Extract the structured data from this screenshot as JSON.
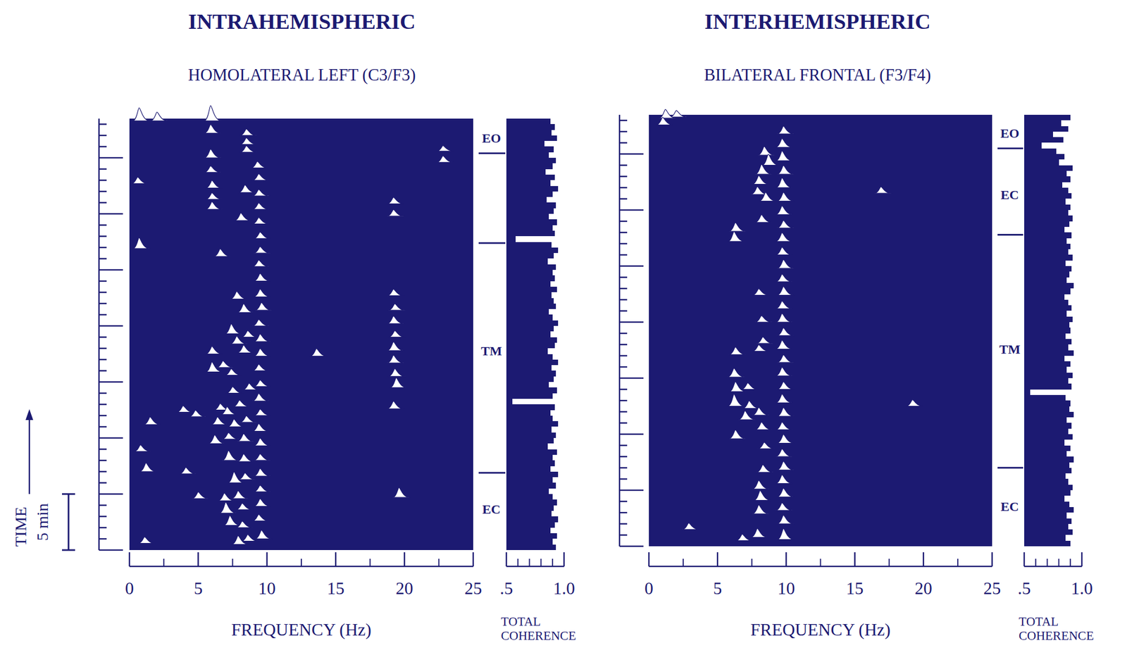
{
  "chart_data": [
    {
      "type": "spectral_array",
      "group_title": "INTRAHEMISPHERIC",
      "title": "HOMOLATERAL LEFT (C3/F3)",
      "x_label": "FREQUENCY (Hz)",
      "color": "#1c1a72",
      "xlim": [
        0,
        25
      ],
      "xticks": [
        0,
        5,
        10,
        15,
        20,
        25
      ],
      "xminor": [
        2.5,
        7.5,
        12.5,
        17.5,
        22.5
      ],
      "ylim": [
        0,
        38.5
      ],
      "yticks": [
        0,
        1,
        2,
        3,
        4,
        5,
        6,
        7,
        8,
        9,
        10,
        11,
        12,
        13,
        14,
        15,
        16,
        17,
        18,
        19,
        20,
        21,
        22,
        23,
        24,
        25,
        26,
        27,
        28,
        29,
        30,
        31,
        32,
        33,
        34,
        35,
        36,
        37,
        38
      ],
      "tick_labels": "x",
      "peaks": {
        "freq": [
          0.7,
          2.0,
          5.9,
          5.9,
          8.5,
          8.5,
          22.8,
          8.5,
          5.9,
          22.8,
          9.3,
          5.9,
          9.4,
          0.6,
          6.0,
          8.4,
          9.4,
          6.0,
          19.2,
          6.0,
          9.4,
          19.2,
          8.1,
          9.4,
          9.5,
          0.7,
          9.5,
          6.6,
          9.4,
          9.5,
          19.2,
          9.5,
          7.8,
          19.3,
          9.6,
          8.3,
          19.2,
          9.4,
          7.4,
          8.6,
          19.3,
          9.5,
          7.8,
          19.2,
          8.3,
          6.0,
          13.6,
          9.5,
          19.2,
          6.8,
          9.4,
          6.0,
          7.4,
          19.3,
          9.5,
          19.4,
          8.7,
          7.5,
          9.4,
          8.0,
          19.2,
          6.6,
          3.9,
          7.1,
          9.5,
          4.8,
          8.5,
          6.4,
          1.5,
          7.6,
          9.4,
          7.2,
          8.3,
          6.2,
          9.5,
          0.8,
          9.5,
          7.2,
          8.3,
          1.2,
          4.1,
          9.5,
          8.4,
          7.6,
          9.5,
          19.6,
          5.0,
          7.9,
          6.9,
          9.5,
          8.2,
          7.0,
          9.4,
          7.3,
          8.2,
          9.6,
          8.6,
          1.1,
          7.9
        ],
        "time": [
          38.3,
          38.3,
          38.3,
          37.2,
          37.0,
          36.2,
          35.6,
          35.5,
          35.0,
          34.6,
          34.1,
          33.7,
          33.0,
          32.7,
          32.3,
          31.9,
          31.6,
          31.3,
          30.9,
          30.4,
          30.4,
          29.8,
          29.4,
          29.1,
          27.8,
          26.9,
          26.5,
          26.2,
          25.3,
          24.0,
          22.7,
          22.6,
          22.4,
          21.4,
          21.4,
          21.2,
          20.2,
          20.0,
          19.3,
          19.0,
          19.0,
          18.6,
          18.4,
          17.8,
          17.6,
          17.5,
          17.3,
          17.3,
          16.7,
          16.3,
          16.0,
          15.9,
          15.6,
          15.5,
          14.6,
          14.5,
          14.3,
          14.0,
          13.3,
          12.8,
          12.6,
          12.5,
          12.3,
          12.1,
          12.0,
          11.9,
          11.4,
          11.2,
          11.2,
          11.0,
          10.6,
          9.9,
          9.7,
          9.5,
          9.3,
          8.8,
          8.0,
          8.0,
          7.9,
          7.0,
          6.8,
          6.6,
          6.3,
          6.0,
          5.2,
          4.7,
          4.6,
          4.6,
          4.4,
          3.9,
          3.6,
          3.3,
          2.6,
          2.2,
          2.0,
          1.0,
          0.8,
          0.6,
          0.5
        ],
        "amplitude": [
          0.6,
          0.4,
          0.7,
          0.4,
          0.3,
          0.3,
          0.25,
          0.3,
          0.4,
          0.3,
          0.3,
          0.3,
          0.3,
          0.3,
          0.35,
          0.35,
          0.3,
          0.3,
          0.3,
          0.35,
          0.3,
          0.3,
          0.35,
          0.3,
          0.3,
          0.5,
          0.3,
          0.35,
          0.3,
          0.35,
          0.3,
          0.35,
          0.35,
          0.3,
          0.35,
          0.4,
          0.35,
          0.3,
          0.45,
          0.3,
          0.3,
          0.35,
          0.35,
          0.4,
          0.35,
          0.35,
          0.35,
          0.35,
          0.35,
          0.3,
          0.3,
          0.45,
          0.3,
          0.35,
          0.3,
          0.45,
          0.3,
          0.3,
          0.35,
          0.3,
          0.35,
          0.3,
          0.3,
          0.35,
          0.3,
          0.3,
          0.3,
          0.35,
          0.35,
          0.35,
          0.35,
          0.3,
          0.35,
          0.4,
          0.35,
          0.3,
          0.3,
          0.45,
          0.35,
          0.4,
          0.3,
          0.35,
          0.3,
          0.5,
          0.3,
          0.45,
          0.3,
          0.35,
          0.35,
          0.35,
          0.3,
          0.5,
          0.3,
          0.45,
          0.3,
          0.4,
          0.3,
          0.3,
          0.4
        ]
      },
      "segments": {
        "boundaries": [
          35.4,
          27.4,
          6.9
        ],
        "labels": [
          "EO",
          "TM",
          "EC"
        ],
        "label_times": [
          36.8,
          17.8,
          3.7
        ]
      },
      "coherence": {
        "label": "TOTAL COHERENCE",
        "xlim": [
          0.5,
          1.0
        ],
        "xticks": [
          {
            "value": 0.5,
            "label": ".5"
          },
          {
            "value": 1.0,
            "label": "1.0"
          }
        ],
        "xminor": [
          0.6,
          0.7,
          0.8,
          0.9
        ],
        "time": [
          0,
          0.5,
          1,
          1.5,
          2,
          2.5,
          3,
          3.5,
          4,
          4.5,
          5,
          5.5,
          6,
          6.5,
          7,
          7.5,
          8,
          8.5,
          9,
          9.5,
          10,
          10.5,
          11,
          11.5,
          12,
          12.5,
          13,
          13.5,
          14,
          14.5,
          15,
          15.5,
          16,
          16.5,
          17,
          17.5,
          18,
          18.5,
          19,
          19.5,
          20,
          20.5,
          21,
          21.5,
          22,
          22.5,
          23,
          23.5,
          24,
          24.5,
          25,
          25.5,
          26,
          26.5,
          27,
          27.5,
          28,
          28.5,
          29,
          29.5,
          30,
          30.5,
          31,
          31.5,
          32,
          32.5,
          33,
          33.5,
          34,
          34.5,
          35,
          35.5,
          36,
          36.5,
          37,
          37.5,
          38
        ],
        "values": [
          0.93,
          0.9,
          0.94,
          0.88,
          0.92,
          0.95,
          0.89,
          0.91,
          0.94,
          0.9,
          0.87,
          0.93,
          0.9,
          0.95,
          0.88,
          0.92,
          0.9,
          0.94,
          0.86,
          0.91,
          0.93,
          0.89,
          0.95,
          0.9,
          0.88,
          0.92,
          0.55,
          0.9,
          0.94,
          0.87,
          0.91,
          0.93,
          0.89,
          0.95,
          0.9,
          0.86,
          0.92,
          0.94,
          0.88,
          0.91,
          0.95,
          0.9,
          0.87,
          0.93,
          0.91,
          0.89,
          0.94,
          0.88,
          0.92,
          0.9,
          0.93,
          0.86,
          0.91,
          0.95,
          0.89,
          0.58,
          0.92,
          0.9,
          0.94,
          0.87,
          0.91,
          0.93,
          0.85,
          0.9,
          0.95,
          0.88,
          0.92,
          0.84,
          0.9,
          0.93,
          0.87,
          0.91,
          0.83,
          0.94,
          0.89,
          0.92,
          0.88
        ]
      }
    },
    {
      "type": "spectral_array",
      "group_title": "INTERHEMISPHERIC",
      "title": "BILATERAL FRONTAL (F3/F4)",
      "x_label": "FREQUENCY (Hz)",
      "color": "#1c1a72",
      "xlim": [
        0,
        25
      ],
      "xticks": [
        0,
        5,
        10,
        15,
        20,
        25
      ],
      "xminor": [
        2.5,
        7.5,
        12.5,
        17.5,
        22.5
      ],
      "ylim": [
        0,
        38.5
      ],
      "yticks": [
        0,
        1,
        2,
        3,
        4,
        5,
        6,
        7,
        8,
        9,
        10,
        11,
        12,
        13,
        14,
        15,
        16,
        17,
        18,
        19,
        20,
        21,
        22,
        23,
        24,
        25,
        26,
        27,
        28,
        29,
        30,
        31,
        32,
        33,
        34,
        35,
        36,
        37,
        38
      ],
      "tick_labels": "x",
      "peaks": {
        "freq": [
          2.0,
          1.2,
          1.0,
          9.8,
          9.7,
          8.4,
          9.7,
          8.7,
          9.8,
          8.2,
          8.0,
          9.7,
          16.9,
          7.9,
          9.8,
          8.5,
          9.7,
          8.2,
          9.8,
          6.3,
          6.2,
          9.7,
          9.7,
          9.8,
          9.7,
          8.0,
          9.8,
          9.7,
          8.2,
          9.7,
          9.8,
          8.3,
          9.7,
          8.0,
          6.3,
          9.8,
          6.2,
          9.7,
          9.8,
          7.2,
          6.3,
          9.7,
          19.2,
          6.2,
          7.3,
          8.0,
          9.8,
          7.0,
          8.2,
          9.7,
          6.3,
          9.8,
          8.4,
          9.7,
          9.8,
          8.3,
          9.7,
          8.0,
          9.8,
          8.1,
          9.7,
          8.0,
          9.8,
          2.9,
          7.9,
          9.8,
          6.8
        ],
        "time": [
          38.3,
          38.2,
          37.6,
          36.8,
          35.6,
          34.9,
          34.4,
          34.0,
          33.2,
          33.2,
          32.3,
          32.0,
          31.5,
          31.4,
          30.8,
          30.8,
          29.6,
          28.9,
          28.4,
          28.1,
          27.2,
          27.2,
          26.0,
          24.8,
          23.6,
          22.4,
          22.4,
          21.2,
          20.0,
          20.0,
          18.8,
          18.1,
          17.6,
          17.4,
          17.1,
          16.4,
          15.1,
          15.2,
          14.0,
          14.0,
          13.8,
          12.8,
          12.5,
          12.5,
          12.3,
          11.7,
          11.6,
          11.3,
          10.4,
          10.4,
          9.6,
          9.2,
          8.7,
          8.0,
          6.8,
          6.6,
          5.6,
          5.1,
          4.4,
          4.1,
          3.2,
          2.9,
          2.0,
          1.5,
          0.8,
          0.6,
          0.5
        ],
        "amplitude": [
          0.3,
          0.4,
          0.35,
          0.35,
          0.4,
          0.4,
          0.45,
          0.5,
          0.4,
          0.45,
          0.4,
          0.45,
          0.3,
          0.35,
          0.4,
          0.4,
          0.4,
          0.35,
          0.35,
          0.4,
          0.45,
          0.4,
          0.35,
          0.4,
          0.35,
          0.3,
          0.4,
          0.35,
          0.3,
          0.4,
          0.35,
          0.3,
          0.4,
          0.3,
          0.35,
          0.35,
          0.4,
          0.4,
          0.35,
          0.3,
          0.45,
          0.4,
          0.3,
          0.55,
          0.35,
          0.35,
          0.4,
          0.4,
          0.35,
          0.35,
          0.4,
          0.4,
          0.3,
          0.35,
          0.4,
          0.35,
          0.4,
          0.4,
          0.4,
          0.45,
          0.35,
          0.4,
          0.4,
          0.3,
          0.4,
          0.5,
          0.3
        ]
      },
      "segments": {
        "boundaries": [
          35.5,
          27.8,
          7.0
        ],
        "labels": [
          "EO",
          "EC",
          "TM",
          "EC"
        ],
        "label_times": [
          36.9,
          31.4,
          17.6,
          3.6
        ]
      },
      "coherence": {
        "label": "TOTAL COHERENCE",
        "xlim": [
          0.5,
          1.0
        ],
        "xticks": [
          {
            "value": 0.5,
            "label": ".5"
          },
          {
            "value": 1.0,
            "label": "1.0"
          }
        ],
        "xminor": [
          0.6,
          0.7,
          0.8,
          0.9
        ],
        "time": [
          0,
          0.5,
          1,
          1.5,
          2,
          2.5,
          3,
          3.5,
          4,
          4.5,
          5,
          5.5,
          6,
          6.5,
          7,
          7.5,
          8,
          8.5,
          9,
          9.5,
          10,
          10.5,
          11,
          11.5,
          12,
          12.5,
          13,
          13.5,
          14,
          14.5,
          15,
          15.5,
          16,
          16.5,
          17,
          17.5,
          18,
          18.5,
          19,
          19.5,
          20,
          20.5,
          21,
          21.5,
          22,
          22.5,
          23,
          23.5,
          24,
          24.5,
          25,
          25.5,
          26,
          26.5,
          27,
          27.5,
          28,
          28.5,
          29,
          29.5,
          30,
          30.5,
          31,
          31.5,
          32,
          32.5,
          33,
          33.5,
          34,
          34.5,
          35,
          35.5,
          36,
          36.5,
          37,
          37.5,
          38
        ],
        "values": [
          0.9,
          0.86,
          0.92,
          0.88,
          0.91,
          0.87,
          0.93,
          0.89,
          0.85,
          0.9,
          0.92,
          0.88,
          0.86,
          0.91,
          0.89,
          0.93,
          0.87,
          0.9,
          0.85,
          0.92,
          0.88,
          0.91,
          0.87,
          0.93,
          0.89,
          0.9,
          0.86,
          0.55,
          0.91,
          0.88,
          0.92,
          0.87,
          0.9,
          0.85,
          0.93,
          0.88,
          0.91,
          0.86,
          0.9,
          0.89,
          0.92,
          0.87,
          0.91,
          0.88,
          0.85,
          0.9,
          0.93,
          0.87,
          0.89,
          0.91,
          0.86,
          0.92,
          0.88,
          0.9,
          0.87,
          0.91,
          0.85,
          0.89,
          0.92,
          0.88,
          0.9,
          0.86,
          0.91,
          0.88,
          0.83,
          0.9,
          0.87,
          0.92,
          0.8,
          0.85,
          0.78,
          0.65,
          0.84,
          0.75,
          0.88,
          0.82,
          0.9
        ]
      }
    }
  ],
  "time_axis": {
    "label": "TIME",
    "scale_bar_label": "5 min",
    "scale_bar_minutes": 5
  }
}
